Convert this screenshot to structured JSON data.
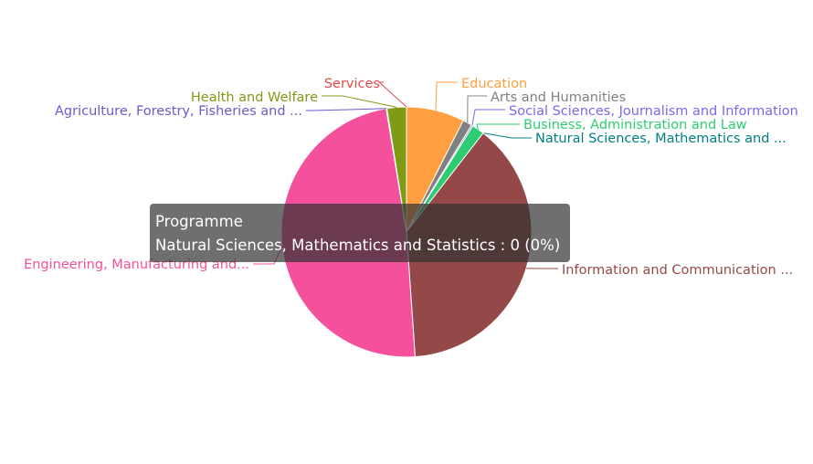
{
  "chart_data": {
    "type": "pie",
    "series_name": "Programme",
    "slices": [
      {
        "name": "Education",
        "label": "Education",
        "value": 7.5,
        "color": "#ff9f3f"
      },
      {
        "name": "Arts and Humanities",
        "label": "Arts and Humanities",
        "value": 1.2,
        "color": "#808080"
      },
      {
        "name": "Social Sciences, Journalism and Information",
        "label": "Social Sciences, Journalism and Information",
        "value": 0.2,
        "color": "#7b68ee"
      },
      {
        "name": "Business, Administration and Law",
        "label": "Business, Administration and Law",
        "value": 1.6,
        "color": "#2ecc71"
      },
      {
        "name": "Natural Sciences, Mathematics and Statistics",
        "label": "Natural Sciences, Mathematics and ...",
        "value": 0,
        "color": "#008080"
      },
      {
        "name": "Information and Communication Technologies",
        "label": "Information and Communication ...",
        "value": 38.4,
        "color": "#954848"
      },
      {
        "name": "Engineering, Manufacturing and Construction",
        "label": "Engineering, Manufacturing and...",
        "value": 48.5,
        "color": "#f4509b"
      },
      {
        "name": "Agriculture, Forestry, Fisheries and Veterinary",
        "label": "Agriculture, Forestry, Fisheries and ...",
        "value": 0.1,
        "color": "#6a5acd"
      },
      {
        "name": "Health and Welfare",
        "label": "Health and Welfare",
        "value": 2.5,
        "color": "#7f9a14"
      },
      {
        "name": "Services",
        "label": "Services",
        "value": 0,
        "color": "#e04848"
      }
    ]
  },
  "tooltip": {
    "title": "Programme",
    "text": "Natural Sciences, Mathematics and Statistics : 0 (0%)"
  }
}
